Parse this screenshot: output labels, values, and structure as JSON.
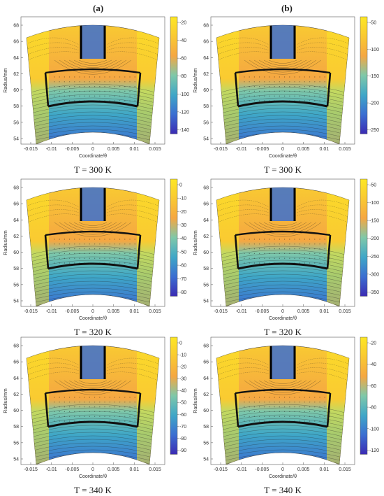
{
  "figure": {
    "column_labels": [
      "(a)",
      "(b)"
    ],
    "y_axis_label": "Radius/mm",
    "x_axis_label": "Coordinate/θ",
    "y_ticks": [
      "68",
      "66",
      "64",
      "62",
      "60",
      "58",
      "56",
      "54"
    ],
    "x_ticks": [
      "-0.015",
      "-0.01",
      "-0.005",
      "0",
      "0.005",
      "0.01",
      "0.015"
    ],
    "panels": [
      {
        "id": "a1",
        "column": "a",
        "caption": "T = 300 K",
        "colorbar_ticks": [
          "-20",
          "-40",
          "-60",
          "-80",
          "-100",
          "-120",
          "-140"
        ]
      },
      {
        "id": "b1",
        "column": "b",
        "caption": "T = 300 K",
        "colorbar_ticks": [
          "-50",
          "-100",
          "-150",
          "-200",
          "-250"
        ]
      },
      {
        "id": "a2",
        "column": "a",
        "caption": "T = 320 K",
        "colorbar_ticks": [
          "0",
          "-10",
          "-20",
          "-30",
          "-40",
          "-50",
          "-60",
          "-70",
          "-80"
        ]
      },
      {
        "id": "b2",
        "column": "b",
        "caption": "T = 320 K",
        "colorbar_ticks": [
          "-50",
          "-100",
          "-150",
          "-200",
          "-250",
          "-300",
          "-350"
        ]
      },
      {
        "id": "a3",
        "column": "a",
        "caption": "T = 340 K",
        "colorbar_ticks": [
          "0",
          "-10",
          "-20",
          "-30",
          "-40",
          "-50",
          "-60",
          "-70",
          "-80",
          "-90"
        ]
      },
      {
        "id": "b3",
        "column": "b",
        "caption": "T = 340 K",
        "colorbar_ticks": [
          "-20",
          "-40",
          "-60",
          "-80",
          "-100",
          "-120"
        ]
      }
    ],
    "colormap": [
      "#fde725",
      "#f9c932",
      "#f5a742",
      "#7fc8a9",
      "#3fa7c7",
      "#3b6ed1",
      "#3b2bb3"
    ]
  }
}
